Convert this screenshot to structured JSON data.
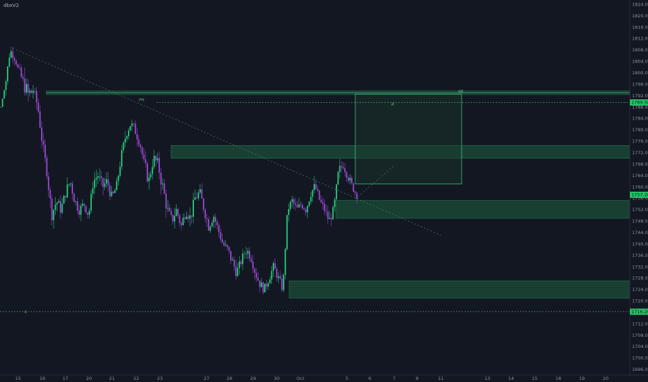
{
  "header": {
    "symbol": "dbxV2"
  },
  "colors": {
    "background": "#131722",
    "up_candle": "#26d07c",
    "down_candle": "#9c4bd6",
    "zone_fill": "#1e5a3f",
    "zone_border": "#2e8b57",
    "level_line": "#4aa776",
    "trendline": "#3d7a5a",
    "axis_text": "#8d929c",
    "price_tag": "#26c066"
  },
  "chart_data": {
    "type": "candlestick",
    "y_axis": {
      "range": [
        1694.0,
        1825.5
      ],
      "ticks": [
        "1824.00",
        "1820.00",
        "1816.00",
        "1812.00",
        "1808.00",
        "1804.00",
        "1800.00",
        "1796.00",
        "1792.00",
        "1788.00",
        "1784.00",
        "1780.00",
        "1776.00",
        "1772.00",
        "1768.00",
        "1764.00",
        "1760.00",
        "1756.00",
        "1752.00",
        "1748.00",
        "1744.00",
        "1740.00",
        "1736.00",
        "1732.00",
        "1728.00",
        "1724.00",
        "1720.00",
        "1716.00",
        "1712.00",
        "1708.00",
        "1704.00",
        "1700.00",
        "1696.00"
      ]
    },
    "x_axis": {
      "ticks": [
        "15",
        "16",
        "17",
        "20",
        "21",
        "22",
        "23",
        "27",
        "28",
        "29",
        "30",
        "Oct",
        "5",
        "6",
        "7",
        "8",
        "11",
        "13",
        "14",
        "15",
        "18",
        "19",
        "20"
      ]
    },
    "price_tags": [
      "1789.58",
      "1757.20",
      "1716.20"
    ],
    "annotations": {
      "level_upper_label": "PH",
      "level_lower_label": "S",
      "box_label": "R",
      "box_top_label": "BB"
    },
    "zones": [
      {
        "name": "supply-zone-upper",
        "from": 1770.0,
        "to": 1774.5
      },
      {
        "name": "demand-zone-mid",
        "from": 1749.0,
        "to": 1755.2
      },
      {
        "name": "demand-zone-low",
        "from": 1721.0,
        "to": 1727.0
      }
    ],
    "levels": [
      {
        "name": "resistance-line",
        "value": 1793.0
      },
      {
        "name": "prior-high-line",
        "value": 1789.58
      },
      {
        "name": "support-line",
        "value": 1716.2
      }
    ],
    "target_box": {
      "top": 1792.5,
      "bottom": 1761.0
    },
    "price_path": [
      [
        1788,
        0
      ],
      [
        1796,
        4
      ],
      [
        1808,
        3
      ],
      [
        1805,
        2
      ],
      [
        1800,
        5
      ],
      [
        1796,
        7
      ],
      [
        1792,
        10
      ],
      [
        1794,
        5
      ],
      [
        1788,
        5
      ],
      [
        1775,
        5
      ],
      [
        1765,
        6
      ],
      [
        1750,
        5
      ],
      [
        1755,
        5
      ],
      [
        1752,
        4
      ],
      [
        1758,
        5
      ],
      [
        1762,
        5
      ],
      [
        1755,
        5
      ],
      [
        1752,
        4
      ],
      [
        1754,
        4
      ],
      [
        1750,
        4
      ],
      [
        1762,
        5
      ],
      [
        1764,
        5
      ],
      [
        1760,
        5
      ],
      [
        1762,
        5
      ],
      [
        1756,
        4
      ],
      [
        1760,
        4
      ],
      [
        1770,
        5
      ],
      [
        1778,
        4
      ],
      [
        1782,
        5
      ],
      [
        1780,
        5
      ],
      [
        1776,
        4
      ],
      [
        1768,
        6
      ],
      [
        1762,
        5
      ],
      [
        1770,
        5
      ],
      [
        1768,
        7
      ],
      [
        1760,
        6
      ],
      [
        1752,
        5
      ],
      [
        1748,
        5
      ],
      [
        1752,
        4
      ],
      [
        1746,
        5
      ],
      [
        1752,
        5
      ],
      [
        1749,
        5
      ],
      [
        1756,
        5
      ],
      [
        1758,
        5
      ],
      [
        1752,
        5
      ],
      [
        1746,
        4
      ],
      [
        1750,
        4
      ],
      [
        1745,
        4
      ],
      [
        1740,
        4
      ],
      [
        1738,
        5
      ],
      [
        1734,
        5
      ],
      [
        1730,
        4
      ],
      [
        1734,
        4
      ],
      [
        1738,
        5
      ],
      [
        1736,
        4
      ],
      [
        1730,
        4
      ],
      [
        1726,
        4
      ],
      [
        1724,
        4
      ],
      [
        1728,
        4
      ],
      [
        1732,
        4
      ],
      [
        1728,
        4
      ],
      [
        1724,
        3
      ],
      [
        1752,
        4
      ],
      [
        1755,
        4
      ],
      [
        1752,
        4
      ],
      [
        1754,
        4
      ],
      [
        1752,
        5
      ],
      [
        1758,
        5
      ],
      [
        1760,
        4
      ],
      [
        1755,
        4
      ],
      [
        1752,
        4
      ],
      [
        1748,
        4
      ],
      [
        1752,
        4
      ],
      [
        1765,
        5
      ],
      [
        1768,
        4
      ],
      [
        1764,
        4
      ],
      [
        1760,
        3
      ],
      [
        1757,
        3
      ]
    ]
  }
}
